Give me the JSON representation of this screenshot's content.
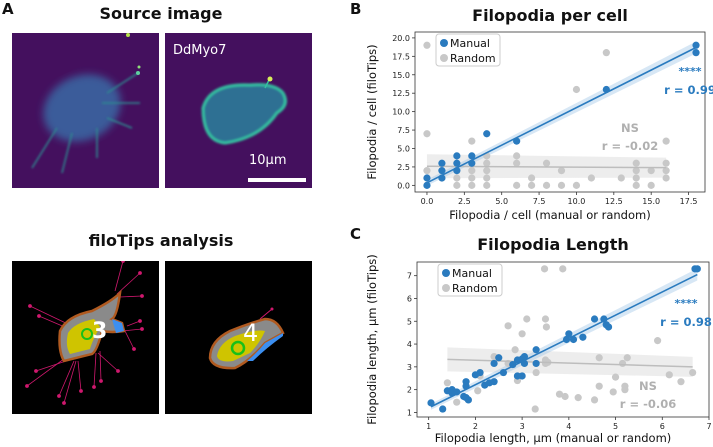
{
  "panel_a": {
    "letter": "A",
    "source_title": "Source image",
    "analysis_title": "filoTips analysis",
    "channel_label": "DdMyo7",
    "scale_bar_label": "10µm",
    "cell_labels": [
      "3",
      "4"
    ]
  },
  "colors": {
    "manual": "#2a7bbf",
    "random": "#c8c8c8",
    "random_text": "#b0b0b0",
    "purple": "#44105e"
  },
  "chart_data": [
    {
      "panel": "B",
      "type": "scatter",
      "title": "Filopodia per cell",
      "xlabel": "Filopodia / cell (manual or random)",
      "ylabel": "Filopodia / cell (filoTips)",
      "xlim": [
        -0.8,
        18.6
      ],
      "ylim": [
        -0.9,
        20.8
      ],
      "xticks": [
        "0.0",
        "2.5",
        "5.0",
        "7.5",
        "10.0",
        "12.5",
        "15.0",
        "17.5"
      ],
      "xtick_values": [
        0,
        2.5,
        5,
        7.5,
        10,
        12.5,
        15,
        17.5
      ],
      "yticks": [
        "0.0",
        "2.5",
        "5.0",
        "7.5",
        "10.0",
        "12.5",
        "15.0",
        "17.5",
        "20.0"
      ],
      "ytick_values": [
        0,
        2.5,
        5,
        7.5,
        10,
        12.5,
        15,
        17.5,
        20
      ],
      "legend": {
        "placement": "top-left",
        "entries": [
          "Manual",
          "Random"
        ]
      },
      "annotations": {
        "manual_sig": "****",
        "manual_r": "r = 0.99",
        "random_sig": "NS",
        "random_r": "r = -0.02"
      },
      "series": [
        {
          "name": "Manual",
          "points": [
            [
              0,
              0
            ],
            [
              0,
              1
            ],
            [
              1,
              1
            ],
            [
              1,
              2
            ],
            [
              1,
              3
            ],
            [
              2,
              2
            ],
            [
              2,
              3
            ],
            [
              2,
              4
            ],
            [
              3,
              3
            ],
            [
              3,
              4
            ],
            [
              4,
              7
            ],
            [
              6,
              6
            ],
            [
              12,
              13
            ],
            [
              18,
              18
            ],
            [
              18,
              19
            ]
          ],
          "fit": [
            [
              0,
              0.35
            ],
            [
              18,
              18.7
            ]
          ]
        },
        {
          "name": "Random",
          "points": [
            [
              0,
              19
            ],
            [
              0,
              7
            ],
            [
              0,
              2
            ],
            [
              1,
              1
            ],
            [
              2,
              0
            ],
            [
              2,
              1
            ],
            [
              3,
              0
            ],
            [
              3,
              1
            ],
            [
              3,
              2
            ],
            [
              3,
              6
            ],
            [
              4,
              4
            ],
            [
              4,
              3
            ],
            [
              4,
              2
            ],
            [
              4,
              1
            ],
            [
              4,
              0
            ],
            [
              6,
              0
            ],
            [
              6,
              3
            ],
            [
              6,
              4
            ],
            [
              7,
              0
            ],
            [
              7,
              1
            ],
            [
              8,
              0
            ],
            [
              8,
              3
            ],
            [
              9,
              0
            ],
            [
              9,
              2
            ],
            [
              10,
              0
            ],
            [
              10,
              13
            ],
            [
              11,
              1
            ],
            [
              12,
              18
            ],
            [
              13,
              1
            ],
            [
              14,
              0
            ],
            [
              14,
              1
            ],
            [
              14,
              2
            ],
            [
              14,
              3
            ],
            [
              15,
              0
            ],
            [
              15,
              2
            ],
            [
              16,
              1
            ],
            [
              16,
              2
            ],
            [
              16,
              3
            ],
            [
              16,
              6
            ]
          ],
          "fit": [
            [
              0,
              2.6
            ],
            [
              16,
              2.4
            ]
          ]
        }
      ]
    },
    {
      "panel": "C",
      "type": "scatter",
      "title": "Filopodia Length",
      "xlabel": "Filopodia length, µm (manual or random)",
      "ylabel": "Filopodia length, µm (filoTips)",
      "xlim": [
        0.75,
        7.0
      ],
      "ylim": [
        0.8,
        7.6
      ],
      "xticks": [
        "1",
        "2",
        "3",
        "4",
        "5",
        "6",
        "7"
      ],
      "xtick_values": [
        1,
        2,
        3,
        4,
        5,
        6,
        7
      ],
      "yticks": [
        "1",
        "2",
        "3",
        "4",
        "5",
        "6",
        "7"
      ],
      "ytick_values": [
        1,
        2,
        3,
        4,
        5,
        6,
        7
      ],
      "legend": {
        "placement": "top-left",
        "entries": [
          "Manual",
          "Random"
        ]
      },
      "annotations": {
        "manual_sig": "****",
        "manual_r": "r = 0.98",
        "random_sig": "NS",
        "random_r": "r = -0.06"
      },
      "series": [
        {
          "name": "Manual",
          "points": [
            [
              1.05,
              1.42
            ],
            [
              1.3,
              1.15
            ],
            [
              1.4,
              1.95
            ],
            [
              1.5,
              2.0
            ],
            [
              1.5,
              1.85
            ],
            [
              1.6,
              1.9
            ],
            [
              1.75,
              1.7
            ],
            [
              1.8,
              1.65
            ],
            [
              1.85,
              1.55
            ],
            [
              1.8,
              2.35
            ],
            [
              1.8,
              2.15
            ],
            [
              2.0,
              2.65
            ],
            [
              2.1,
              2.75
            ],
            [
              2.2,
              2.2
            ],
            [
              2.3,
              2.3
            ],
            [
              2.4,
              2.35
            ],
            [
              2.4,
              3.15
            ],
            [
              2.5,
              3.4
            ],
            [
              2.6,
              2.75
            ],
            [
              2.8,
              3.1
            ],
            [
              2.9,
              3.3
            ],
            [
              2.9,
              2.6
            ],
            [
              3.0,
              2.6
            ],
            [
              3.0,
              3.35
            ],
            [
              3.05,
              3.45
            ],
            [
              3.05,
              3.15
            ],
            [
              3.3,
              3.75
            ],
            [
              3.3,
              3.15
            ],
            [
              3.95,
              4.2
            ],
            [
              4.0,
              4.45
            ],
            [
              4.1,
              4.2
            ],
            [
              4.3,
              4.3
            ],
            [
              4.55,
              5.1
            ],
            [
              4.75,
              5.1
            ],
            [
              4.8,
              4.85
            ],
            [
              4.85,
              4.75
            ],
            [
              6.7,
              7.3
            ],
            [
              6.75,
              7.3
            ]
          ],
          "fit": [
            [
              1.05,
              1.25
            ],
            [
              6.75,
              7.05
            ]
          ]
        },
        {
          "name": "Random",
          "points": [
            [
              1.4,
              2.3
            ],
            [
              1.6,
              1.45
            ],
            [
              2.05,
              1.95
            ],
            [
              2.1,
              2.6
            ],
            [
              2.4,
              3.45
            ],
            [
              2.7,
              4.8
            ],
            [
              2.7,
              3.15
            ],
            [
              2.85,
              3.75
            ],
            [
              2.9,
              2.4
            ],
            [
              3.0,
              4.45
            ],
            [
              3.1,
              5.1
            ],
            [
              3.3,
              2.75
            ],
            [
              3.28,
              1.15
            ],
            [
              3.48,
              7.3
            ],
            [
              3.5,
              5.1
            ],
            [
              3.52,
              4.75
            ],
            [
              3.5,
              3.3
            ],
            [
              3.5,
              3.15
            ],
            [
              3.55,
              3.2
            ],
            [
              3.8,
              1.8
            ],
            [
              3.87,
              7.3
            ],
            [
              3.92,
              1.7
            ],
            [
              4.2,
              1.65
            ],
            [
              4.55,
              1.55
            ],
            [
              4.65,
              3.4
            ],
            [
              4.65,
              2.15
            ],
            [
              4.95,
              1.9
            ],
            [
              5.0,
              2.55
            ],
            [
              5.15,
              3.15
            ],
            [
              5.2,
              2.0
            ],
            [
              5.25,
              3.4
            ],
            [
              5.2,
              2.15
            ],
            [
              5.9,
              4.15
            ],
            [
              6.15,
              2.65
            ],
            [
              6.4,
              2.35
            ],
            [
              6.65,
              2.75
            ]
          ],
          "fit": [
            [
              1.4,
              3.33
            ],
            [
              6.65,
              3.0
            ]
          ]
        }
      ]
    }
  ]
}
